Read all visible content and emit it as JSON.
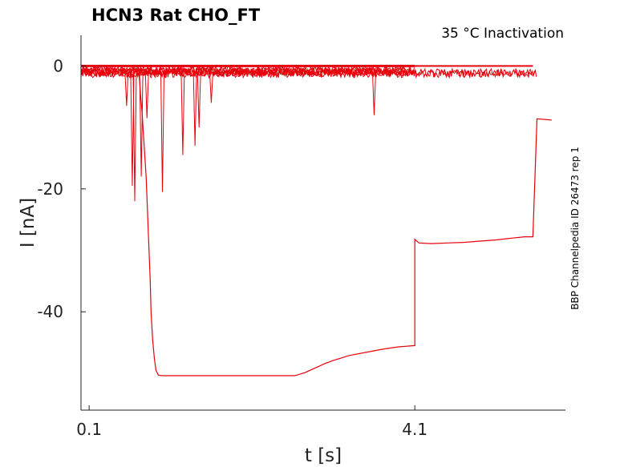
{
  "chart_data": {
    "type": "line",
    "title": "HCN3  Rat  CHO_FT",
    "annotation": "35 °C  Inactivation",
    "side_label": "BBP Channelpedia ID 26473 rep 1",
    "xlabel": "t [s]",
    "ylabel": "I [nA]",
    "xlim": [
      0.0,
      5.95
    ],
    "ylim": [
      -56,
      5
    ],
    "xticks": [
      0.1,
      4.1
    ],
    "xtick_labels": [
      "0.1",
      "4.1"
    ],
    "yticks": [
      0,
      -20,
      -40
    ],
    "ytick_labels": [
      "0",
      "-20",
      "-40"
    ],
    "grid": false,
    "legend": "none",
    "colors": {
      "trace": "#e8000b",
      "axis": "#222222"
    },
    "series": [
      {
        "x": [
          0.0,
          0.7,
          0.71,
          0.72,
          0.73,
          0.75,
          0.8,
          0.85,
          0.86,
          0.88,
          0.9,
          0.92,
          0.95,
          1.0,
          1.05,
          1.1,
          1.15,
          1.2,
          1.25,
          1.3,
          1.35,
          1.4,
          1.5,
          1.6,
          1.7,
          1.8,
          1.9,
          2.0,
          2.1,
          2.15,
          2.2,
          2.3,
          2.35,
          2.4,
          2.5,
          2.6,
          2.62,
          2.65,
          2.7,
          2.75,
          2.8,
          2.85,
          2.9,
          3.0,
          3.1,
          3.2,
          3.3,
          3.5,
          3.7,
          3.9,
          4.1,
          4.1,
          4.15,
          4.3,
          4.5,
          4.7,
          4.9,
          5.1,
          5.3,
          5.45,
          5.55,
          5.6,
          5.78
        ],
        "y": [
          0,
          0,
          -1,
          -2.5,
          -4.5,
          -7.5,
          -18,
          -35,
          -40,
          -44.5,
          -47.5,
          -49.5,
          -50.3,
          -50.4,
          -50.4,
          -50.4,
          -50.4,
          -50.4,
          -50.4,
          -50.4,
          -50.4,
          -50.4,
          -50.4,
          -50.4,
          -50.4,
          -50.4,
          -50.4,
          -50.4,
          -50.4,
          -50.4,
          -50.4,
          -50.4,
          -50.4,
          -50.4,
          -50.4,
          -50.4,
          -50.4,
          -50.3,
          -50.1,
          -49.9,
          -49.6,
          -49.3,
          -49.0,
          -48.4,
          -47.9,
          -47.5,
          -47.1,
          -46.6,
          -46.1,
          -45.7,
          -45.5,
          -28.2,
          -28.8,
          -28.9,
          -28.8,
          -28.7,
          -28.5,
          -28.3,
          -28.0,
          -27.8,
          -27.8,
          -8.6,
          -8.8
        ]
      }
    ],
    "noise_spikes": [
      {
        "x": 0.56,
        "y": -6.5
      },
      {
        "x": 0.63,
        "y": -19.5
      },
      {
        "x": 0.66,
        "y": -22.0
      },
      {
        "x": 0.74,
        "y": -18.0
      },
      {
        "x": 0.81,
        "y": -8.5
      },
      {
        "x": 1.0,
        "y": -20.5
      },
      {
        "x": 1.25,
        "y": -14.5
      },
      {
        "x": 1.4,
        "y": -13.0
      },
      {
        "x": 1.45,
        "y": -10.0
      },
      {
        "x": 1.6,
        "y": -6.0
      },
      {
        "x": 3.6,
        "y": -8.0
      }
    ]
  }
}
